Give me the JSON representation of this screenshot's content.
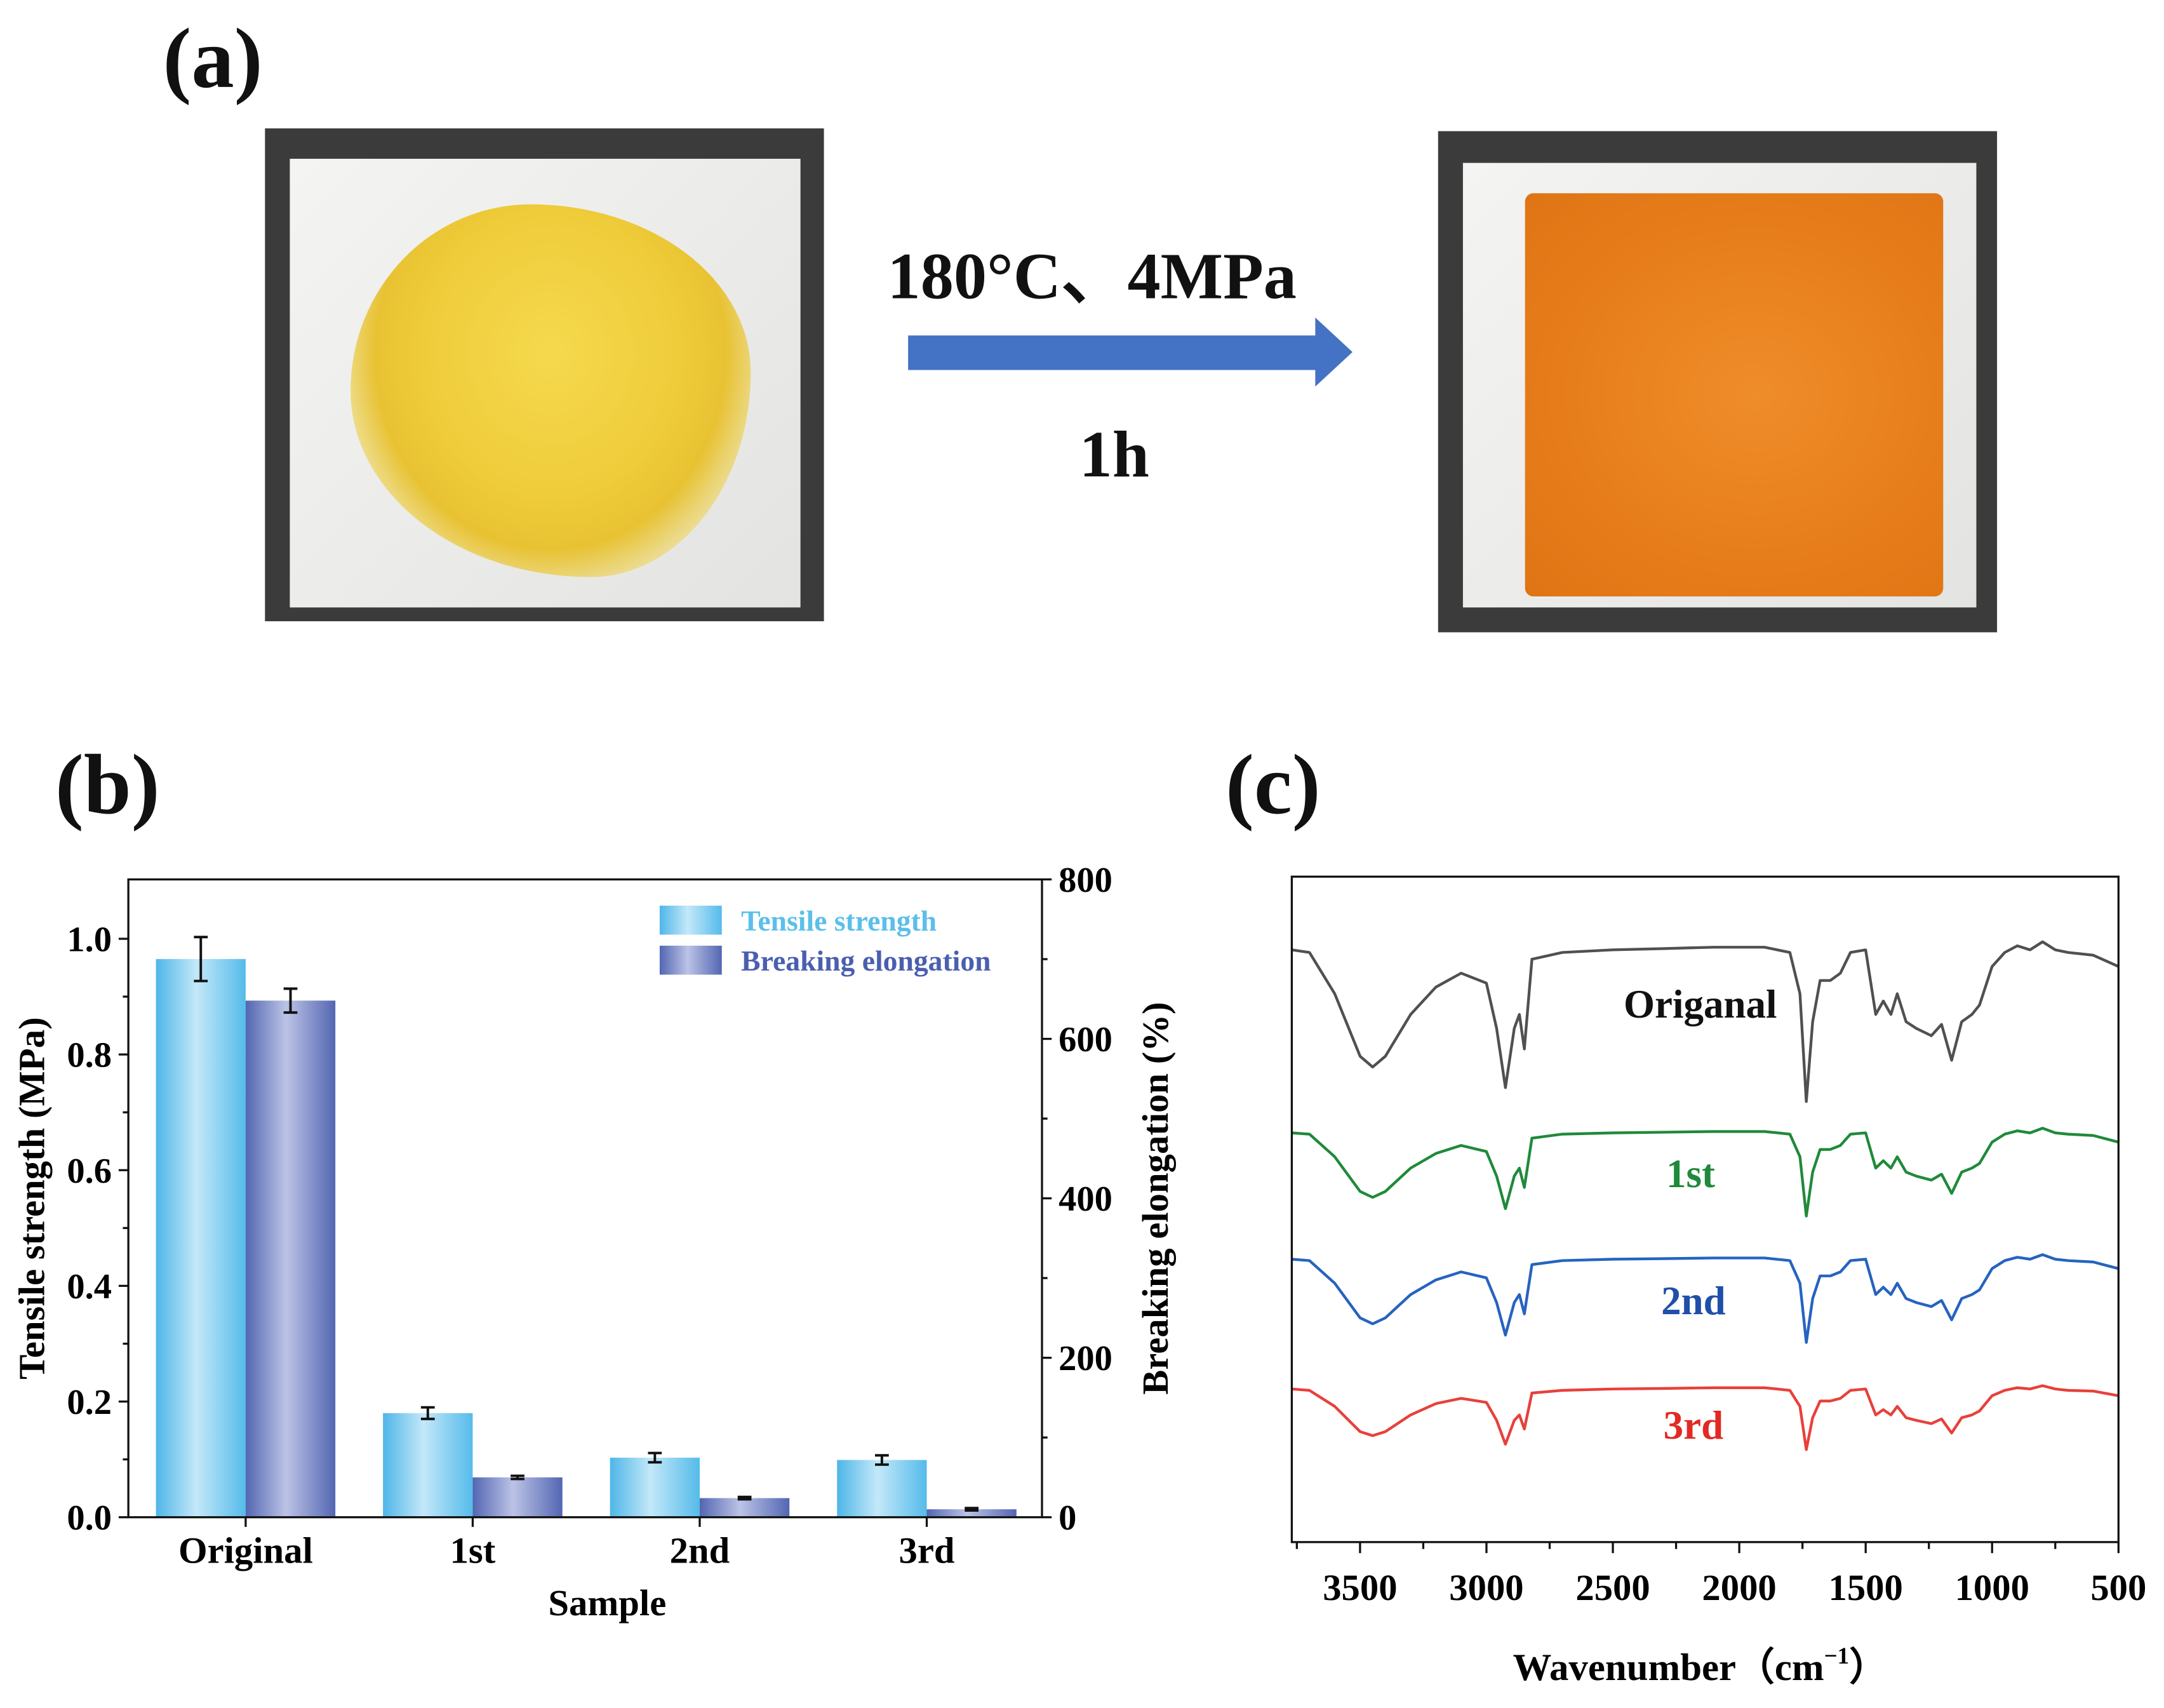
{
  "panels": {
    "a": "(a)",
    "b": "(b)",
    "c": "(c)"
  },
  "process": {
    "condition": "180°C、4MPa",
    "time": "1h",
    "arrow_color": "#4472c4"
  },
  "photos": {
    "before": "yellow powder on white tile",
    "after": "orange pressed sheet on white tile",
    "powder_color": "#f0cf3c",
    "sheet_color": "#e8801c"
  },
  "chart_data": [
    {
      "type": "bar",
      "title": "",
      "xlabel": "Sample",
      "ylabel": "Tensile strength (MPa)",
      "ylabel_right": "Breaking elongation (%)",
      "categories": [
        "Original",
        "1st",
        "2nd",
        "3rd"
      ],
      "ylim": [
        0,
        1.1
      ],
      "ylim_right": [
        0,
        800
      ],
      "yticks": [
        "0.0",
        "0.2",
        "0.4",
        "0.6",
        "0.8",
        "1.0"
      ],
      "yticks_right": [
        "0",
        "200",
        "400",
        "600",
        "800"
      ],
      "legend_position": "top-right",
      "series": [
        {
          "name": "Tensile strength",
          "axis": "left",
          "color": "#5bbfea",
          "label_color": "#5bbfea",
          "values": [
            0.965,
            0.18,
            0.103,
            0.099
          ],
          "errors": [
            0.038,
            0.01,
            0.008,
            0.008
          ]
        },
        {
          "name": "Breaking elongation",
          "axis": "right",
          "color": "#5a6db8",
          "label_color": "#4a5fb0",
          "values": [
            648,
            50,
            24,
            10
          ],
          "errors": [
            15,
            2,
            1.5,
            1.5
          ]
        }
      ]
    },
    {
      "type": "line",
      "title": "",
      "xlabel": "Wavenumber（cm",
      "xlabel_sup": "−1",
      "xlabel_close": "）",
      "ylabel": "",
      "xlim": [
        3770,
        500
      ],
      "ylim": [
        0,
        100
      ],
      "xticks": [
        3500,
        3000,
        2500,
        2000,
        1500,
        1000,
        500
      ],
      "x": [
        3770,
        3700,
        3600,
        3500,
        3450,
        3400,
        3300,
        3200,
        3100,
        3000,
        2960,
        2925,
        2890,
        2870,
        2850,
        2820,
        2700,
        2500,
        2300,
        2100,
        1900,
        1800,
        1760,
        1735,
        1710,
        1680,
        1640,
        1600,
        1560,
        1500,
        1460,
        1430,
        1400,
        1375,
        1340,
        1300,
        1240,
        1200,
        1160,
        1120,
        1080,
        1050,
        1000,
        950,
        900,
        850,
        800,
        750,
        700,
        600,
        500
      ],
      "series": [
        {
          "name": "Origanal",
          "color": "#505050",
          "label_color": "#111111",
          "y": [
            89,
            88.6,
            82.4,
            73,
            71.4,
            73,
            79.3,
            83.4,
            85.5,
            84,
            77.2,
            68.3,
            77.2,
            79.3,
            74.1,
            87.6,
            88.6,
            89,
            89.2,
            89.4,
            89.4,
            88.6,
            82.4,
            66.2,
            78.2,
            84.4,
            84.4,
            85.5,
            88.6,
            89,
            79.3,
            81.3,
            79.3,
            82.4,
            78.2,
            77.2,
            76.1,
            77.8,
            72.4,
            78.2,
            79.3,
            80.7,
            86.5,
            88.6,
            89.6,
            89,
            90.2,
            89,
            88.6,
            88.2,
            86.5
          ]
        },
        {
          "name": "1st",
          "color": "#1f8a3a",
          "label_color": "#1f8a3a",
          "y": [
            61.5,
            61.3,
            57.9,
            52.7,
            51.8,
            52.7,
            56.2,
            58.4,
            59.6,
            58.7,
            55,
            50.1,
            55,
            56.2,
            53.3,
            60.7,
            61.3,
            61.5,
            61.6,
            61.7,
            61.7,
            61.3,
            57.9,
            49,
            55.6,
            59,
            59,
            59.6,
            61.3,
            61.5,
            56.2,
            57.3,
            56.2,
            57.9,
            55.6,
            55,
            54.4,
            55.3,
            52.4,
            55.6,
            56.2,
            56.9,
            60.1,
            61.3,
            61.8,
            61.5,
            62.2,
            61.5,
            61.3,
            61.1,
            60.1
          ]
        },
        {
          "name": "2nd",
          "color": "#2563c0",
          "label_color": "#1f4fa8",
          "y": [
            42.5,
            42.3,
            38.9,
            33.7,
            32.8,
            33.7,
            37.2,
            39.4,
            40.6,
            39.7,
            36,
            31.1,
            36,
            37.2,
            34.3,
            41.7,
            42.3,
            42.5,
            42.6,
            42.7,
            42.7,
            42.3,
            38.9,
            30,
            36.6,
            40,
            40,
            40.6,
            42.3,
            42.5,
            37.2,
            38.3,
            37.2,
            38.9,
            36.6,
            36,
            35.4,
            36.3,
            33.4,
            36.6,
            37.2,
            37.9,
            41.1,
            42.3,
            42.8,
            42.5,
            43.2,
            42.5,
            42.3,
            42.1,
            41.1
          ]
        },
        {
          "name": "3rd",
          "color": "#e8403a",
          "label_color": "#e02a24",
          "y": [
            23,
            22.8,
            20.4,
            16.6,
            16,
            16.6,
            19.1,
            20.8,
            21.6,
            21,
            18.3,
            14.7,
            18.3,
            19.1,
            17,
            22.4,
            22.8,
            23,
            23.1,
            23.2,
            23.2,
            22.8,
            20.4,
            13.9,
            18.7,
            21.2,
            21.2,
            21.6,
            22.8,
            23,
            19.1,
            19.9,
            19.1,
            20.4,
            18.7,
            18.3,
            17.8,
            18.5,
            16.4,
            18.7,
            19.1,
            19.7,
            22,
            22.8,
            23.2,
            23,
            23.5,
            23,
            22.8,
            22.7,
            22
          ]
        }
      ]
    }
  ]
}
